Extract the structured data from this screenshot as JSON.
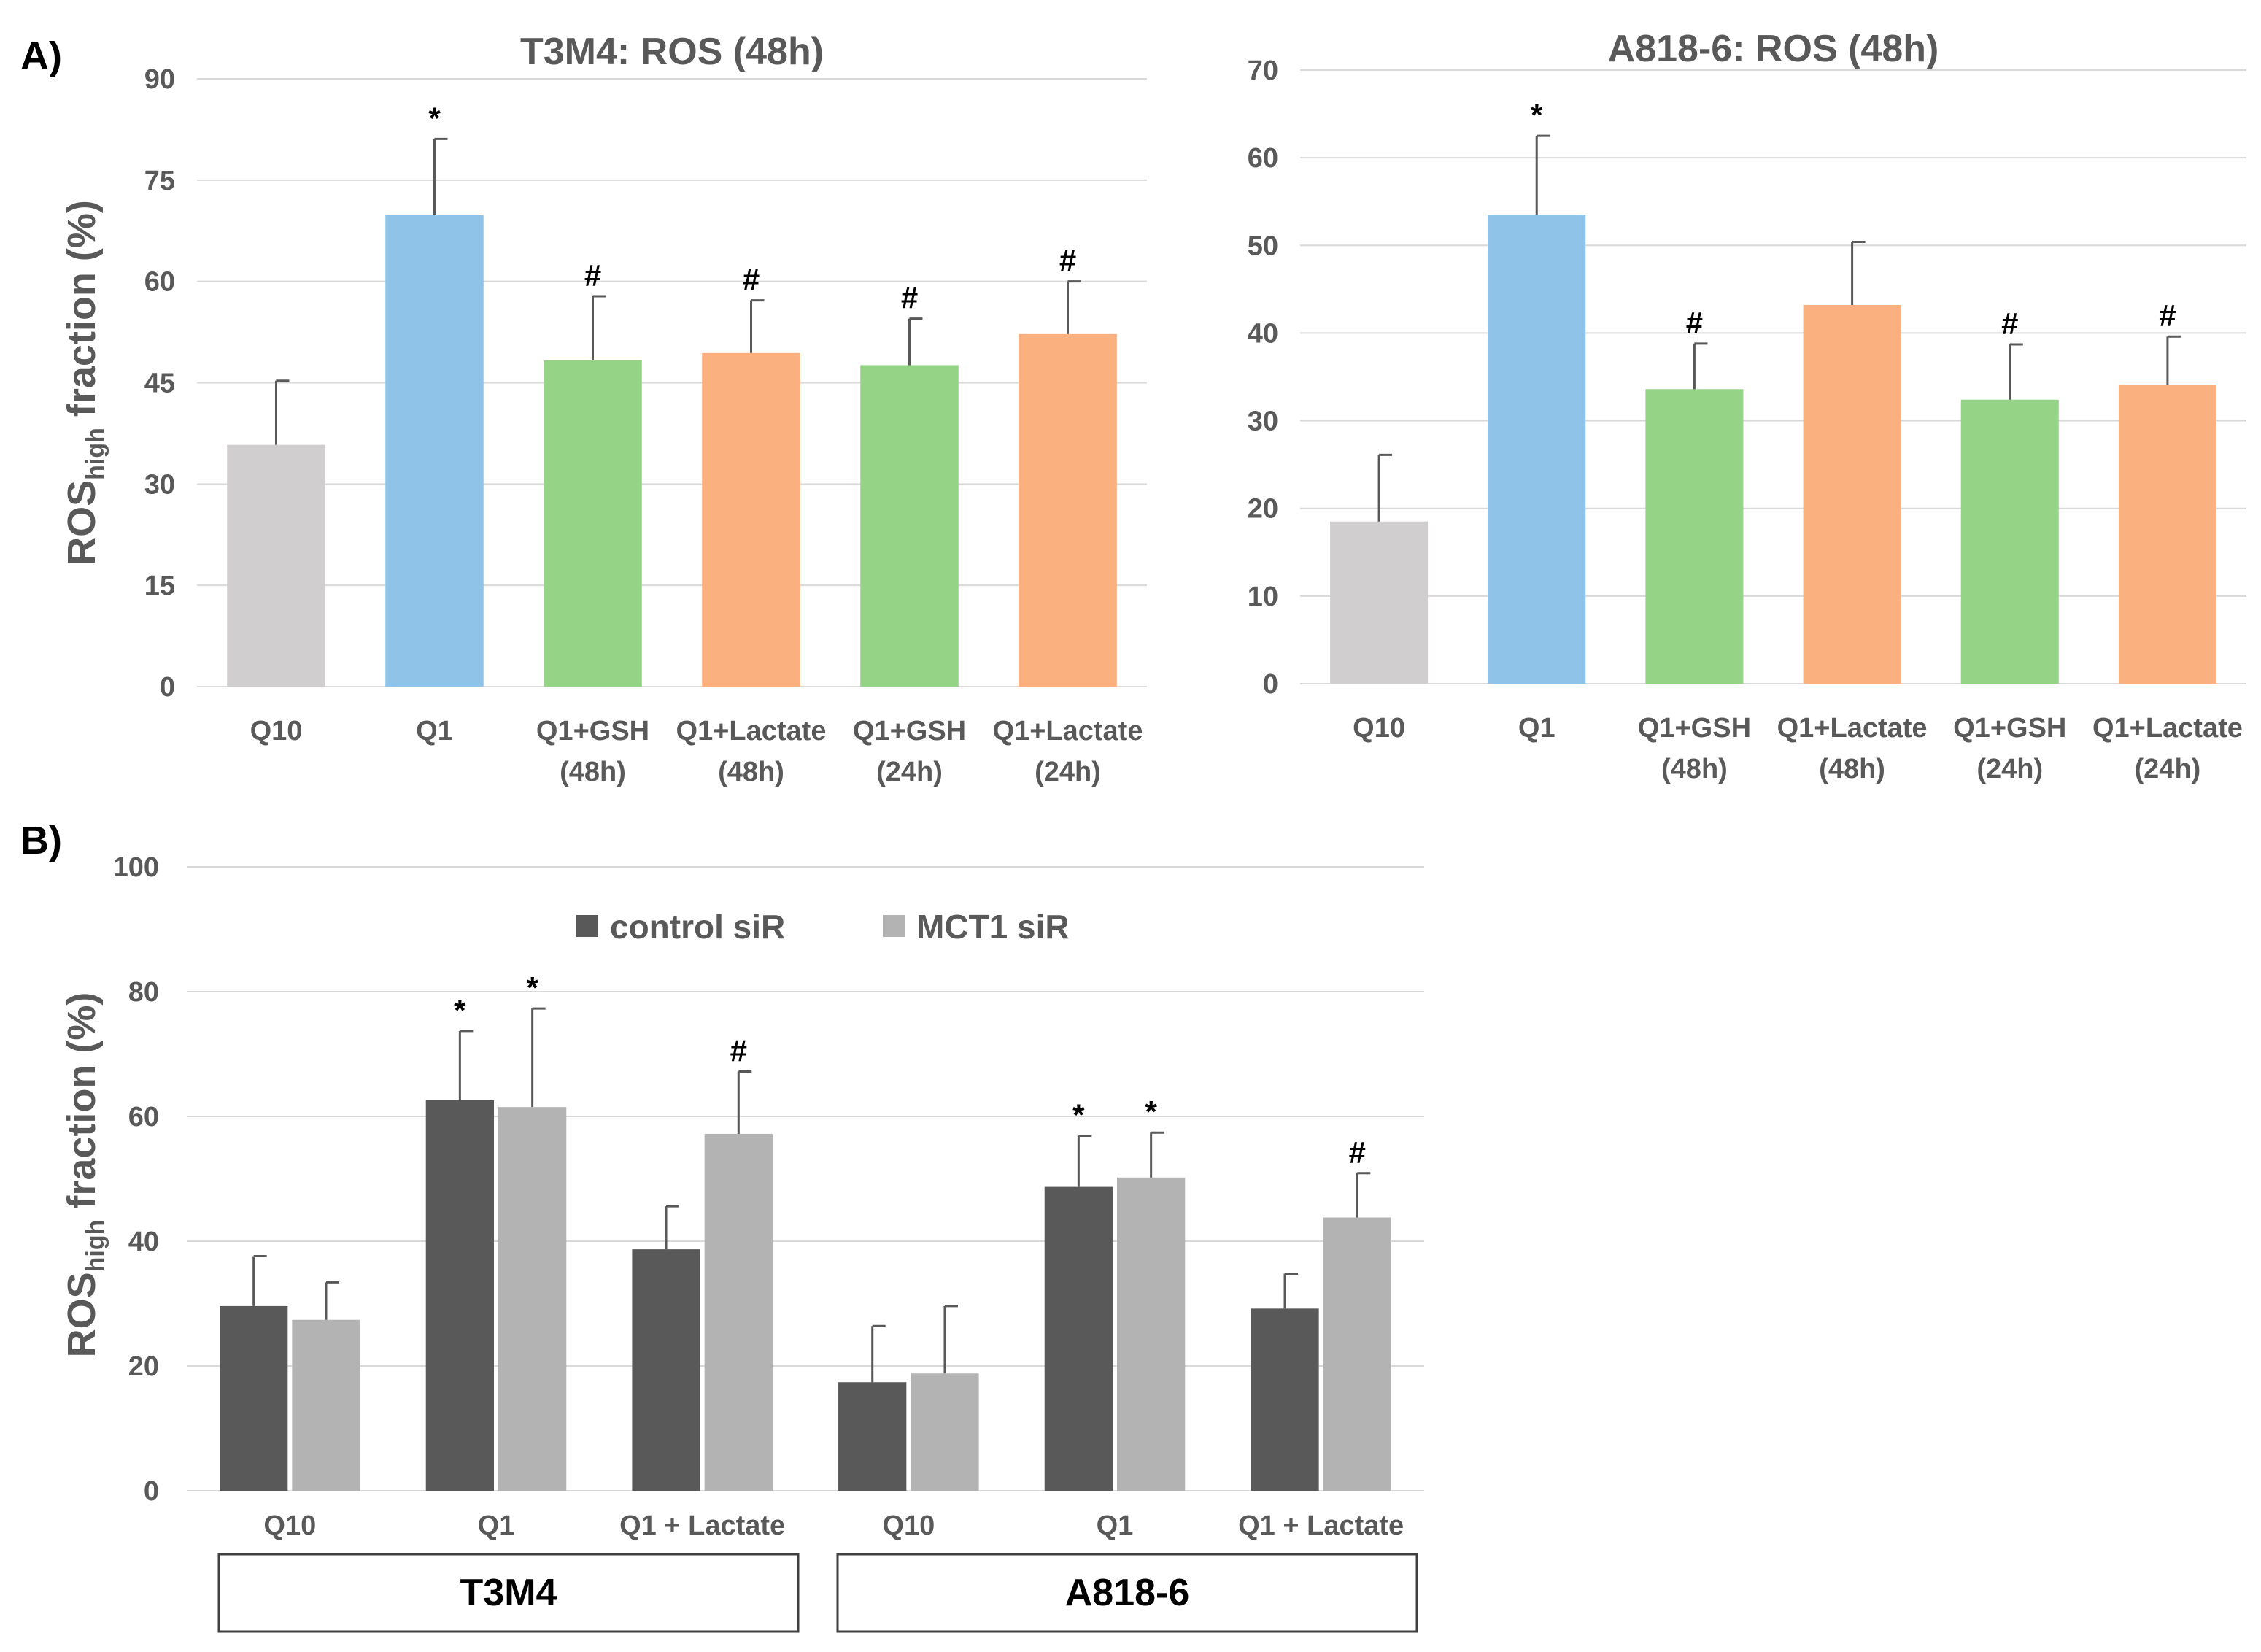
{
  "figure": {
    "panel_a_label": "A)",
    "panel_b_label": "B)"
  },
  "colors": {
    "gray": "#d0cece",
    "blue": "#8fc4e8",
    "green": "#95d386",
    "orange": "#fbb07f",
    "control": "#595959",
    "mct1": "#b3b3b3",
    "grid": "#d9d9d9",
    "axis_text": "#595959",
    "error": "#595959"
  },
  "chart_data": [
    {
      "id": "t3m4",
      "type": "bar",
      "title": "T3M4: ROS (48h)",
      "ylabel": "ROS",
      "ylabel_subscript": "high",
      "ylabel_suffix": " fraction (%)",
      "ylim": [
        0,
        90
      ],
      "yticks": [
        0,
        15,
        30,
        45,
        60,
        75,
        90
      ],
      "grid": true,
      "categories": [
        [
          "Q10"
        ],
        [
          "Q1"
        ],
        [
          "Q1+GSH",
          "(48h)"
        ],
        [
          "Q1+Lactate",
          "(48h)"
        ],
        [
          "Q1+GSH",
          "(24h)"
        ],
        [
          "Q1+Lactate",
          "(24h)"
        ]
      ],
      "values": [
        35.8,
        69.8,
        48.3,
        49.4,
        47.6,
        52.2
      ],
      "errors": [
        9.5,
        11.3,
        9.5,
        7.8,
        6.9,
        7.8
      ],
      "bar_colors": [
        "gray",
        "blue",
        "green",
        "orange",
        "green",
        "orange"
      ],
      "annotations": [
        "",
        "*",
        "#",
        "#",
        "#",
        "#"
      ]
    },
    {
      "id": "a818",
      "type": "bar",
      "title": "A818-6: ROS (48h)",
      "ylim": [
        0,
        70
      ],
      "yticks": [
        0,
        10,
        20,
        30,
        40,
        50,
        60,
        70
      ],
      "grid": true,
      "categories": [
        [
          "Q10"
        ],
        [
          "Q1"
        ],
        [
          "Q1+GSH",
          "(48h)"
        ],
        [
          "Q1+Lactate",
          "(48h)"
        ],
        [
          "Q1+GSH",
          "(24h)"
        ],
        [
          "Q1+Lactate",
          "(24h)"
        ]
      ],
      "values": [
        18.5,
        53.5,
        33.6,
        43.2,
        32.4,
        34.1
      ],
      "errors": [
        7.6,
        9.0,
        5.2,
        7.2,
        6.3,
        5.5
      ],
      "bar_colors": [
        "gray",
        "blue",
        "green",
        "orange",
        "green",
        "orange"
      ],
      "annotations": [
        "",
        "*",
        "#",
        "",
        "#",
        "#"
      ]
    },
    {
      "id": "sirna",
      "type": "bar",
      "ylabel": "ROS",
      "ylabel_subscript": "high",
      "ylabel_suffix": " fraction (%)",
      "ylim": [
        0,
        100
      ],
      "yticks": [
        0,
        20,
        40,
        60,
        80,
        100
      ],
      "grid": true,
      "legend": "top-center",
      "categories": [
        "Q10",
        "Q1",
        "Q1 + Lactate",
        "Q10",
        "Q1",
        "Q1 + Lactate"
      ],
      "groups": [
        {
          "label": "T3M4",
          "span": [
            0,
            2
          ]
        },
        {
          "label": "A818-6",
          "span": [
            3,
            5
          ]
        }
      ],
      "series": [
        {
          "name": "control siR",
          "color": "control",
          "values": [
            29.6,
            62.6,
            38.7,
            17.4,
            48.7,
            29.2
          ],
          "errors": [
            8.0,
            11.1,
            6.9,
            9.0,
            8.2,
            5.6
          ],
          "annotations": [
            "",
            "*",
            "",
            "",
            "*",
            ""
          ]
        },
        {
          "name": "MCT1 siR",
          "color": "mct1",
          "values": [
            27.4,
            61.5,
            57.2,
            18.8,
            50.2,
            43.8
          ],
          "errors": [
            6.0,
            15.8,
            10.0,
            10.8,
            7.2,
            7.1
          ],
          "annotations": [
            "",
            "*",
            "#",
            "",
            "*",
            "#"
          ]
        }
      ]
    }
  ]
}
